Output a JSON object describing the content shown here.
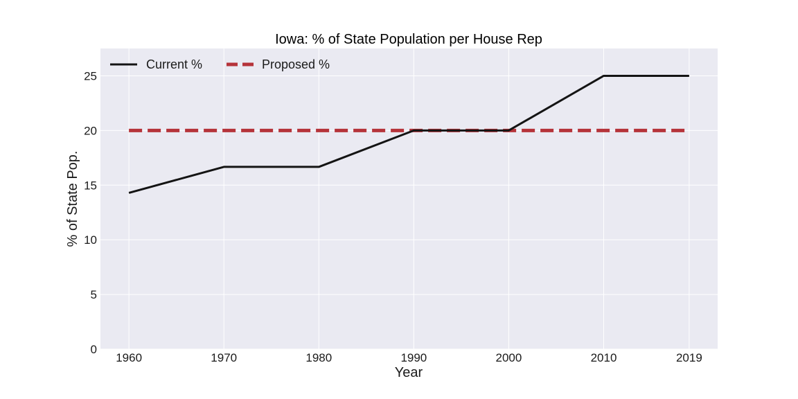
{
  "chart_data": {
    "type": "line",
    "title": "Iowa: % of State Population per House Rep",
    "xlabel": "Year",
    "ylabel": "% of State Pop.",
    "x": [
      1960,
      1970,
      1980,
      1990,
      2000,
      2010,
      2019
    ],
    "x_tick_labels": [
      "1960",
      "1970",
      "1980",
      "1990",
      "2000",
      "2010",
      "2019"
    ],
    "y_ticks": [
      0,
      5,
      10,
      15,
      20,
      25
    ],
    "y_tick_labels": [
      "0",
      "5",
      "10",
      "15",
      "20",
      "25"
    ],
    "xlim": [
      1957,
      2022
    ],
    "ylim": [
      0,
      27.5
    ],
    "grid": true,
    "legend_position": "top-left",
    "series": [
      {
        "name": "Current %",
        "values": [
          14.29,
          16.67,
          16.67,
          20.0,
          20.0,
          25.0,
          25.0
        ],
        "color": "#141414",
        "style": "solid"
      },
      {
        "name": "Proposed %",
        "values": [
          20.0,
          20.0,
          20.0,
          20.0,
          20.0,
          20.0,
          20.0
        ],
        "color": "#b5333a",
        "style": "dashed"
      }
    ],
    "colors": {
      "plot_background": "#eaeaf2",
      "grid": "#ffffff"
    }
  }
}
